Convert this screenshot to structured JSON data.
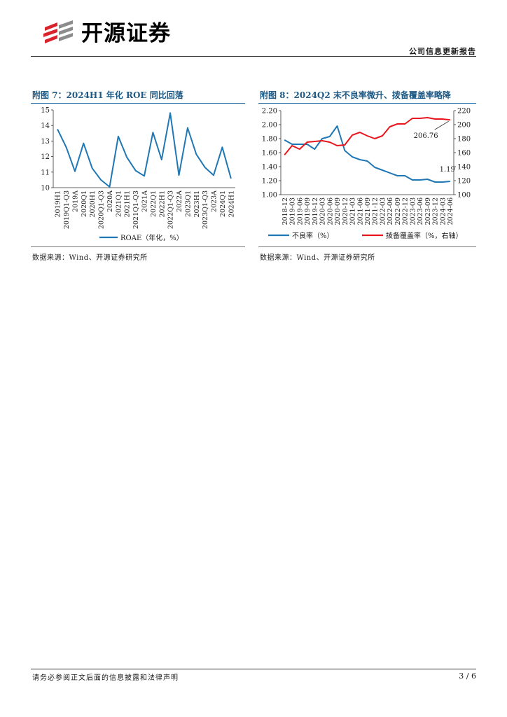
{
  "header": {
    "brand": "开源证券",
    "report_type": "公司信息更新报告",
    "colors": {
      "brand_red": "#d9242b",
      "brand_gray": "#8c8c8c"
    }
  },
  "figures": [
    {
      "title": "附图 7：2024H1 年化 ROE 同比回落",
      "source": "数据来源：Wind、开源证券研究所",
      "chart_data": {
        "type": "line",
        "categories": [
          "2019H1",
          "2019Q1-Q3",
          "2019A",
          "2020Q1",
          "2020H1",
          "2020Q1-Q3",
          "2020A",
          "2021Q1",
          "2021H1",
          "2021Q1-Q3",
          "2021A",
          "2022Q1",
          "2022H1",
          "2022Q1-Q3",
          "2022A",
          "2023Q1",
          "2023H1",
          "2023Q1-Q3",
          "2023A",
          "2024Q1",
          "2024H1"
        ],
        "series": [
          {
            "name": "ROAE（年化，%）",
            "color": "#1f77b4",
            "values": [
              13.75,
              12.6,
              11.05,
              12.85,
              11.25,
              10.5,
              10.05,
              13.3,
              11.95,
              11.1,
              10.75,
              13.55,
              11.8,
              14.8,
              10.8,
              13.85,
              12.15,
              11.3,
              10.8,
              12.6,
              10.6
            ]
          }
        ],
        "ylim": [
          10,
          15
        ],
        "yticks": [
          10,
          11,
          12,
          13,
          14,
          15
        ],
        "legend": "bottom"
      }
    },
    {
      "title": "附图 8：2024Q2 末不良率微升、拨备覆盖率略降",
      "source": "数据来源：Wind、开源证券研究所",
      "chart_data": {
        "type": "line",
        "categories": [
          "2018-12",
          "2019-03",
          "2019-06",
          "2019-09",
          "2019-12",
          "2020-03",
          "2020-06",
          "2020-09",
          "2020-12",
          "2021-03",
          "2021-06",
          "2021-09",
          "2021-12",
          "2022-03",
          "2022-06",
          "2022-09",
          "2022-12",
          "2023-03",
          "2023-06",
          "2023-09",
          "2023-12",
          "2024-03",
          "2024-06"
        ],
        "series": [
          {
            "name": "不良率（%）",
            "axis": "left",
            "color": "#1f77b4",
            "values": [
              1.78,
              1.72,
              1.72,
              1.72,
              1.65,
              1.8,
              1.83,
              1.98,
              1.63,
              1.54,
              1.5,
              1.48,
              1.39,
              1.35,
              1.31,
              1.27,
              1.27,
              1.21,
              1.21,
              1.22,
              1.18,
              1.18,
              1.19
            ]
          },
          {
            "name": "拨备覆盖率（%，右轴）",
            "axis": "right",
            "color": "#e8161c",
            "values": [
              157,
              170,
              165,
              175,
              176,
              177,
              175,
              170,
              171,
              185,
              189,
              184,
              180,
              184,
              197,
              201,
              201,
              209,
              209,
              210,
              208,
              208,
              206.76
            ]
          }
        ],
        "ylim_left": [
          1.0,
          2.2
        ],
        "yticks_left": [
          "1.00",
          "1.20",
          "1.40",
          "1.60",
          "1.80",
          "2.00",
          "2.20"
        ],
        "ylim_right": [
          100,
          220
        ],
        "yticks_right": [
          100,
          120,
          140,
          160,
          180,
          200,
          220
        ],
        "annotations": [
          {
            "text": "206.76",
            "series": "拨备覆盖率（%，右轴）"
          },
          {
            "text": "1.19",
            "series": "不良率（%）"
          }
        ],
        "legend": "bottom"
      }
    }
  ],
  "footer": {
    "disclaimer": "请务必参阅正文后面的信息披露和法律声明",
    "page": "3 / 6"
  }
}
